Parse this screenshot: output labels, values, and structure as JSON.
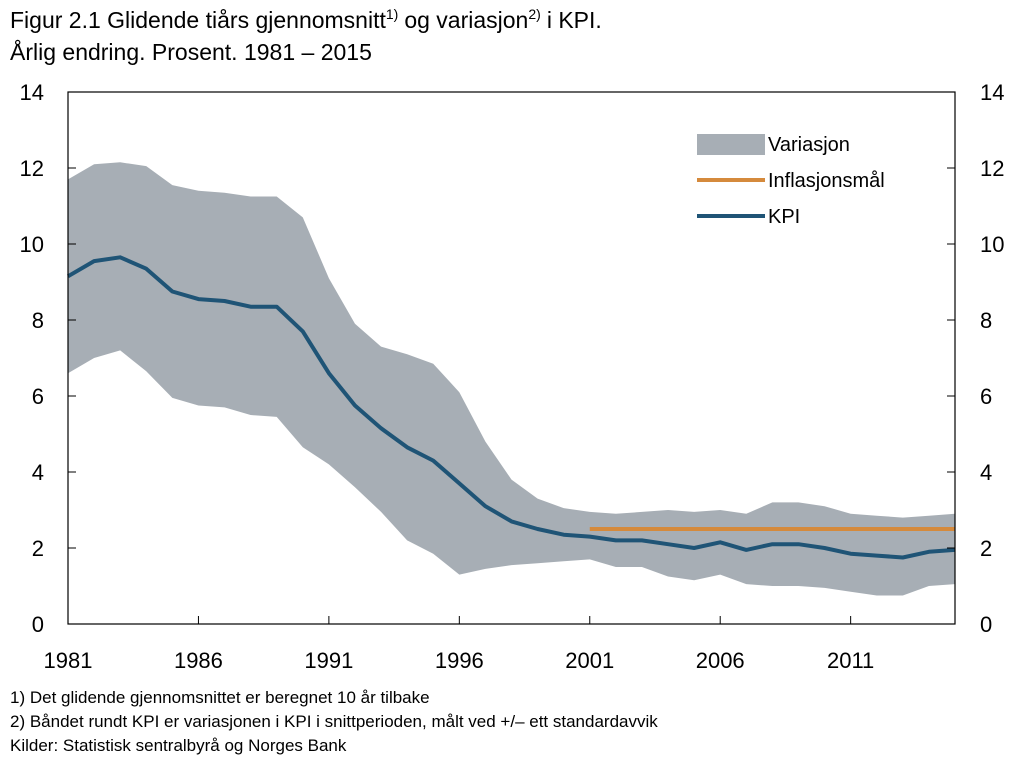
{
  "chart_data": {
    "type": "line",
    "title": [
      "Figur 2.1 Glidende tiårs gjennomsnitt",
      "1)",
      "og variasjon",
      "2)",
      "i KPI."
    ],
    "subtitle": "Årlig endring. Prosent. 1981 – 2015",
    "x": [
      1981,
      1982,
      1983,
      1984,
      1985,
      1986,
      1987,
      1988,
      1989,
      1990,
      1991,
      1992,
      1993,
      1994,
      1995,
      1996,
      1997,
      1998,
      1999,
      2000,
      2001,
      2002,
      2003,
      2004,
      2005,
      2006,
      2007,
      2008,
      2009,
      2010,
      2011,
      2012,
      2013,
      2014,
      2015
    ],
    "series": [
      {
        "name": "Variasjon",
        "color": "#a7aeb5",
        "kind": "band",
        "upper": [
          11.7,
          12.1,
          12.15,
          12.05,
          11.55,
          11.4,
          11.35,
          11.25,
          11.25,
          10.7,
          9.1,
          7.9,
          7.3,
          7.1,
          6.85,
          6.1,
          4.8,
          3.8,
          3.3,
          3.05,
          2.95,
          2.9,
          2.95,
          3.0,
          2.95,
          3.0,
          2.9,
          3.2,
          3.2,
          3.1,
          2.9,
          2.85,
          2.8,
          2.85,
          2.9
        ],
        "lower": [
          6.6,
          7.0,
          7.2,
          6.65,
          5.95,
          5.75,
          5.7,
          5.5,
          5.45,
          4.65,
          4.2,
          3.6,
          2.95,
          2.2,
          1.85,
          1.3,
          1.45,
          1.55,
          1.6,
          1.65,
          1.7,
          1.5,
          1.5,
          1.25,
          1.15,
          1.3,
          1.05,
          1.0,
          1.0,
          0.95,
          0.85,
          0.75,
          0.75,
          1.0,
          1.05
        ]
      },
      {
        "name": "Inflasjonsmål",
        "color": "#d58a3c",
        "kind": "line",
        "values": [
          null,
          null,
          null,
          null,
          null,
          null,
          null,
          null,
          null,
          null,
          null,
          null,
          null,
          null,
          null,
          null,
          null,
          null,
          null,
          null,
          2.5,
          2.5,
          2.5,
          2.5,
          2.5,
          2.5,
          2.5,
          2.5,
          2.5,
          2.5,
          2.5,
          2.5,
          2.5,
          2.5,
          2.5
        ]
      },
      {
        "name": "KPI",
        "color": "#1f5476",
        "kind": "line",
        "values": [
          9.15,
          9.55,
          9.65,
          9.35,
          8.75,
          8.55,
          8.5,
          8.35,
          8.35,
          7.7,
          6.6,
          5.75,
          5.15,
          4.65,
          4.3,
          3.7,
          3.1,
          2.7,
          2.5,
          2.35,
          2.3,
          2.2,
          2.2,
          2.1,
          2.0,
          2.15,
          1.95,
          2.1,
          2.1,
          2.0,
          1.85,
          1.8,
          1.75,
          1.9,
          1.95
        ]
      }
    ],
    "xlim": [
      1981,
      2015
    ],
    "xticks": [
      1981,
      1986,
      1991,
      1996,
      2001,
      2006,
      2011
    ],
    "ylim": [
      0,
      14
    ],
    "yticks": [
      0,
      2,
      4,
      6,
      8,
      10,
      12,
      14
    ],
    "y2lim": [
      0,
      14
    ],
    "y2ticks": [
      0,
      2,
      4,
      6,
      8,
      10,
      12,
      14
    ],
    "legend": "upper right",
    "notes": [
      "1) Det glidende gjennomsnittet er beregnet 10 år tilbake",
      "2) Båndet rundt KPI er variasjonen i KPI i snittperioden, målt ved +/– ett standardavvik",
      "Kilder: Statistisk sentralbyrå og Norges Bank"
    ]
  }
}
